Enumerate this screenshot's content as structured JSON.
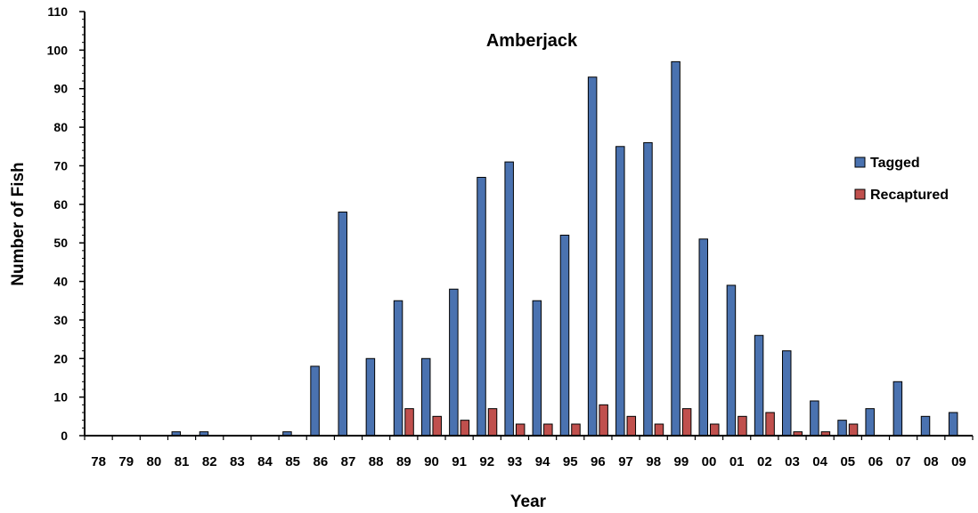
{
  "chart_data": {
    "type": "bar",
    "title": "Amberjack",
    "xlabel": "Year",
    "ylabel": "Number of Fish",
    "ylim": [
      0,
      110
    ],
    "yticks": [
      0,
      10,
      20,
      30,
      40,
      50,
      60,
      70,
      80,
      90,
      100,
      110
    ],
    "grid": false,
    "legend_position": "right",
    "categories": [
      "78",
      "79",
      "80",
      "81",
      "82",
      "83",
      "84",
      "85",
      "86",
      "87",
      "88",
      "89",
      "90",
      "91",
      "92",
      "93",
      "94",
      "95",
      "96",
      "97",
      "98",
      "99",
      "00",
      "01",
      "02",
      "03",
      "04",
      "05",
      "06",
      "07",
      "08",
      "09"
    ],
    "series": [
      {
        "name": "Tagged",
        "color": "#4a72b0",
        "values": [
          0,
          0,
          0,
          1,
          1,
          0,
          0,
          1,
          18,
          58,
          20,
          35,
          20,
          38,
          67,
          71,
          35,
          52,
          93,
          75,
          76,
          97,
          51,
          39,
          26,
          22,
          9,
          4,
          7,
          14,
          5,
          6
        ]
      },
      {
        "name": "Recaptured",
        "color": "#c0504d",
        "values": [
          0,
          0,
          0,
          0,
          0,
          0,
          0,
          0,
          0,
          0,
          0,
          7,
          5,
          4,
          7,
          3,
          3,
          3,
          8,
          5,
          3,
          7,
          3,
          5,
          6,
          1,
          1,
          3,
          0,
          0,
          0,
          0
        ]
      }
    ]
  }
}
